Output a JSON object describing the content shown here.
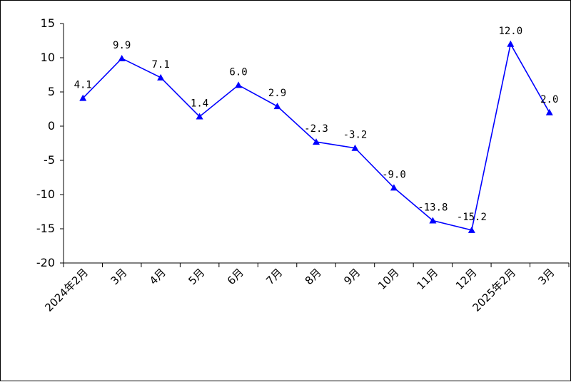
{
  "chart_data": {
    "type": "line",
    "title": "",
    "xlabel": "",
    "ylabel": "",
    "categories": [
      "2024年2月",
      "3月",
      "4月",
      "5月",
      "6月",
      "7月",
      "8月",
      "9月",
      "10月",
      "11月",
      "12月",
      "2025年2月",
      "3月"
    ],
    "series": [
      {
        "values": [
          4.1,
          9.9,
          7.1,
          1.4,
          6.0,
          2.9,
          -2.3,
          -3.2,
          -9.0,
          -13.8,
          -15.2,
          12.0,
          2.0
        ],
        "labels": [
          "4.1",
          "9.9",
          "7.1",
          "1.4",
          "6.0",
          "2.9",
          "-2.3",
          "-3.2",
          "-9.0",
          "-13.8",
          "-15.2",
          "12.0",
          "2.0"
        ],
        "color": "#0000ff",
        "marker": "triangle"
      }
    ],
    "ylim": [
      -20,
      15
    ],
    "yticks": [
      15,
      10,
      5,
      0,
      -5,
      -10,
      -15,
      -20
    ],
    "ytick_labels": [
      "15",
      "10",
      "5",
      "0",
      "-5",
      "-10",
      "-15",
      "-20"
    ],
    "grid": false,
    "legend": "none"
  }
}
